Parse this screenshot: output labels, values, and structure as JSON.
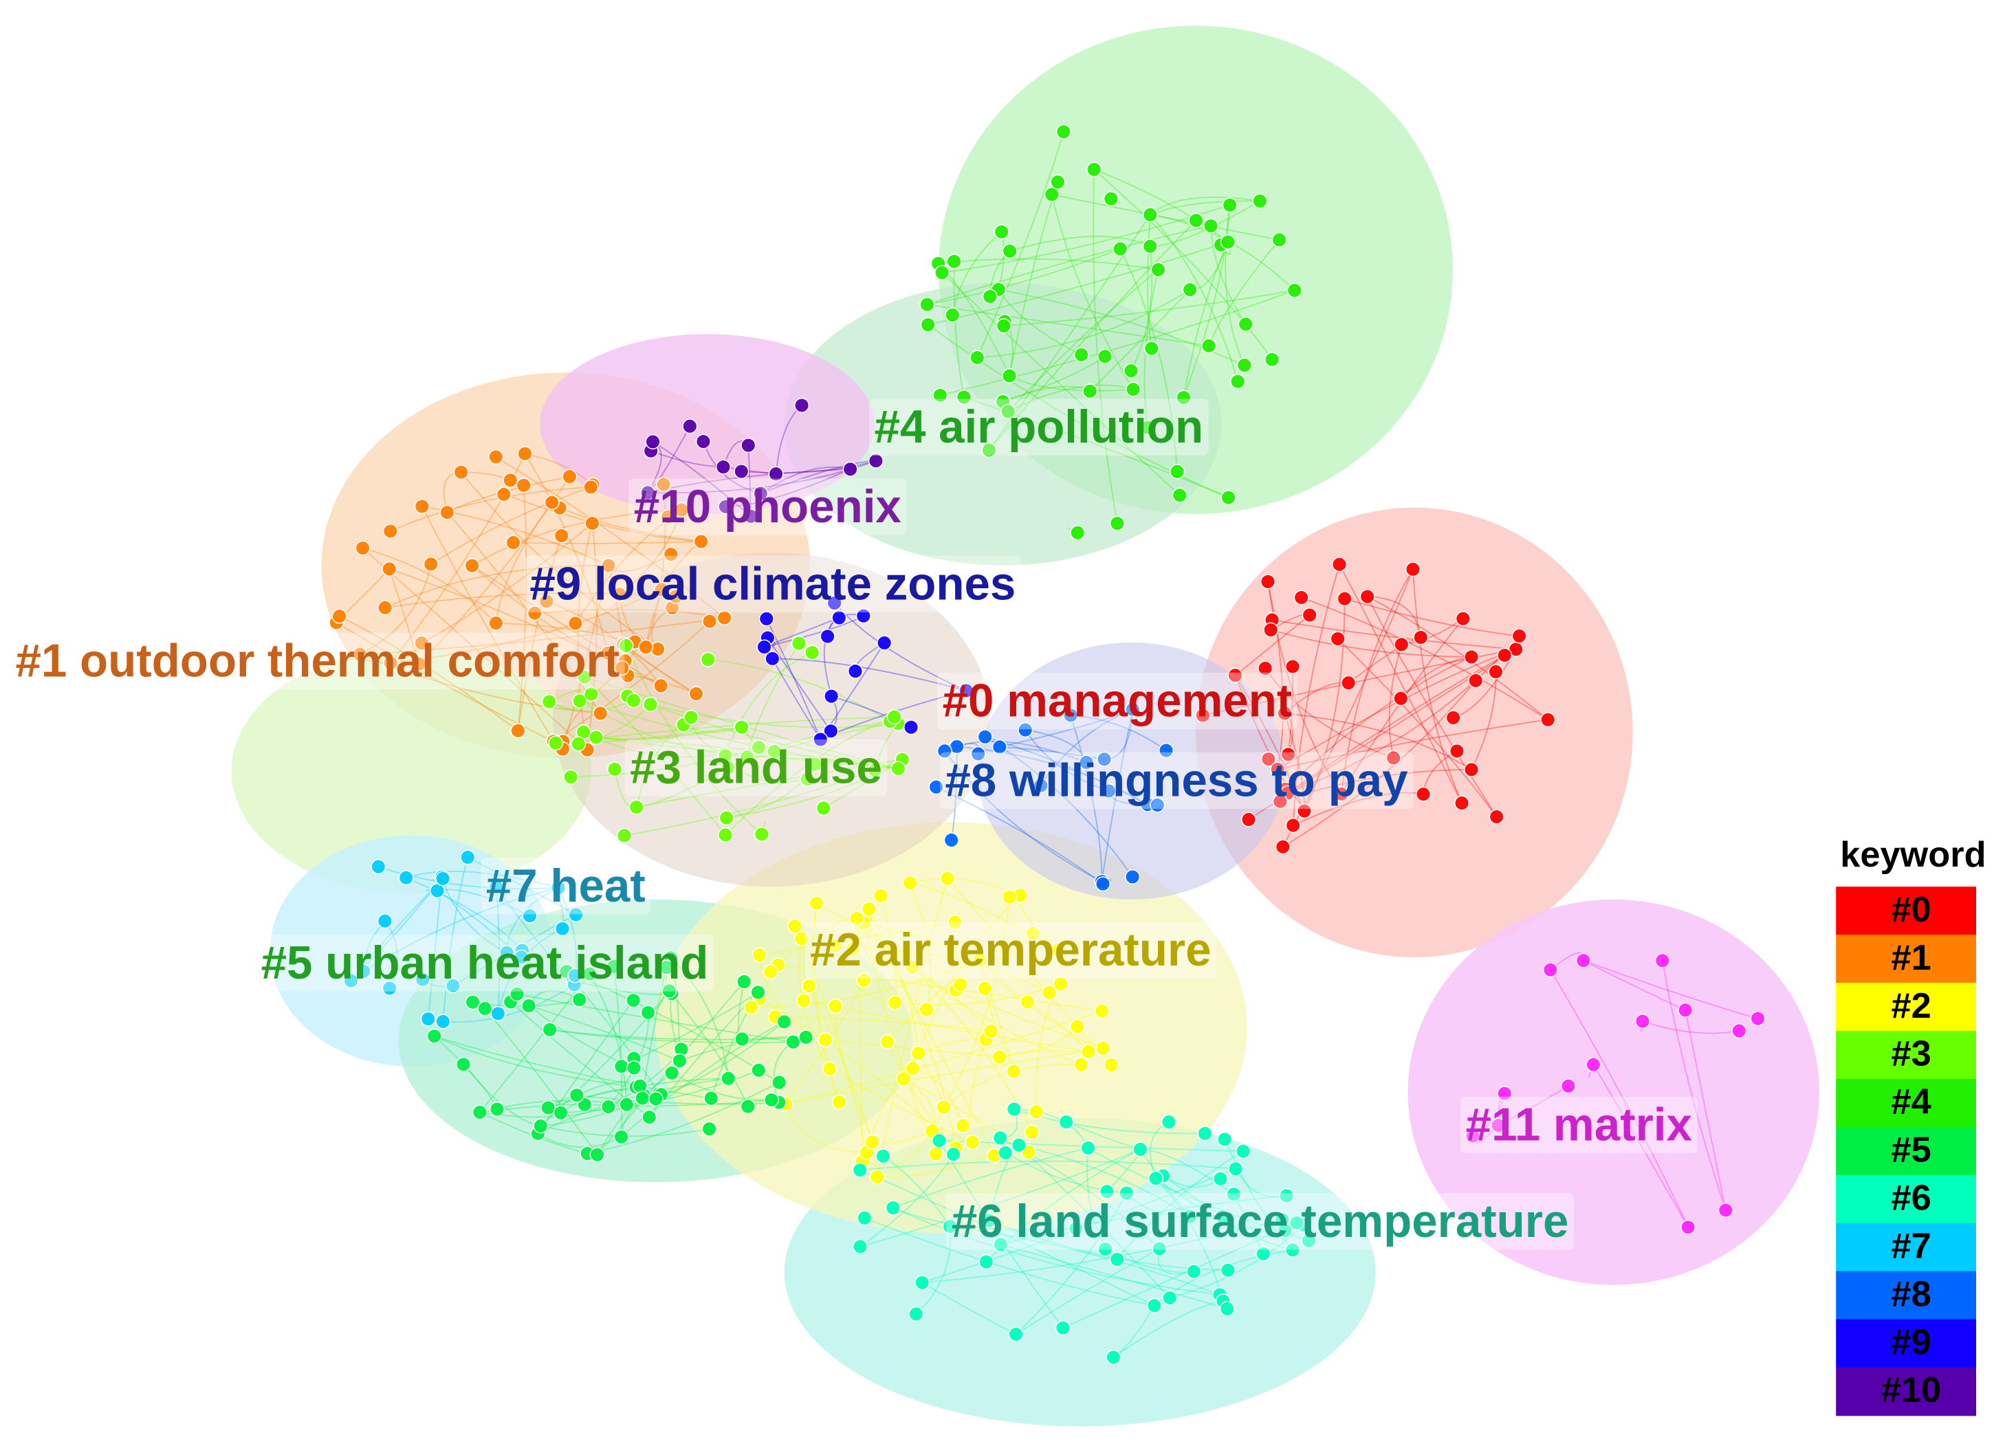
{
  "clusters": [
    {
      "label": "#0 management",
      "color": "#cc1111"
    },
    {
      "label": "#1 outdoor thermal comfort",
      "color": "#c8621a"
    },
    {
      "label": "#2 air temperature",
      "color": "#b8a600"
    },
    {
      "label": "#3 land use",
      "color": "#44aa11"
    },
    {
      "label": "#4 air pollution",
      "color": "#22a022"
    },
    {
      "label": "#5 urban heat island",
      "color": "#22a022"
    },
    {
      "label": "#6 land surface temperature",
      "color": "#1aa080"
    },
    {
      "label": "#7 heat",
      "color": "#1a88aa"
    },
    {
      "label": "#8 willingness to pay",
      "color": "#1144aa"
    },
    {
      "label": "#9 local climate zones",
      "color": "#1a1aa0"
    },
    {
      "label": "#10 phoenix",
      "color": "#7a1fa2"
    },
    {
      "label": "#11 matrix",
      "color": "#cc22cc"
    }
  ],
  "legend": {
    "title": "keyword",
    "items": [
      {
        "label": "#0",
        "color": "#ff0000"
      },
      {
        "label": "#1",
        "color": "#ff7f00"
      },
      {
        "label": "#2",
        "color": "#ffff00"
      },
      {
        "label": "#3",
        "color": "#66ff00"
      },
      {
        "label": "#4",
        "color": "#22ee00"
      },
      {
        "label": "#5",
        "color": "#00ee44"
      },
      {
        "label": "#6",
        "color": "#00ffbb"
      },
      {
        "label": "#7",
        "color": "#00ccff"
      },
      {
        "label": "#8",
        "color": "#0066ff"
      },
      {
        "label": "#9",
        "color": "#1100ff"
      },
      {
        "label": "#10",
        "color": "#5500aa"
      }
    ]
  }
}
